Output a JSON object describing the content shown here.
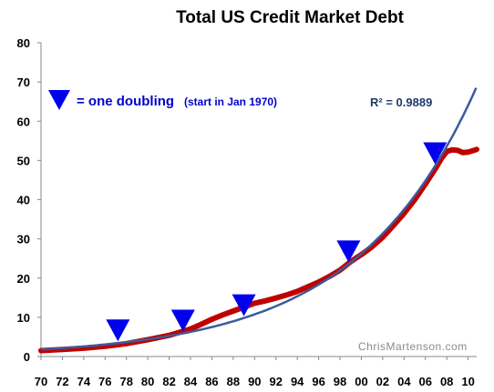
{
  "chart_data": {
    "type": "line",
    "title": "Total US Credit Market Debt",
    "xlabel": "",
    "ylabel": "",
    "xlim": [
      1970,
      2010.8
    ],
    "ylim": [
      0,
      80
    ],
    "x_ticks": [
      "70",
      "72",
      "74",
      "76",
      "78",
      "80",
      "82",
      "84",
      "86",
      "88",
      "90",
      "92",
      "94",
      "96",
      "98",
      "00",
      "02",
      "04",
      "06",
      "08",
      "10"
    ],
    "y_ticks": [
      0,
      10,
      20,
      30,
      40,
      50,
      60,
      70,
      80
    ],
    "grid": false,
    "annotation_r2": "R² = 0.9889",
    "legend_label": "= one doubling",
    "legend_note": "(start in Jan 1970)",
    "credit": "ChrisMartenson.com",
    "series": [
      {
        "color": "#c00000",
        "x": [
          1970,
          1972,
          1974,
          1976,
          1978,
          1980,
          1982,
          1984,
          1985,
          1986,
          1987,
          1988,
          1989,
          1990,
          1991,
          1992,
          1993,
          1994,
          1995,
          1996,
          1997,
          1998,
          1999,
          2000,
          2001,
          2002,
          2003,
          2004,
          2005,
          2006,
          2007,
          2007.5,
          2008,
          2008.5,
          2009,
          2009.5,
          2010,
          2010.8
        ],
        "values": [
          1.5,
          1.8,
          2.1,
          2.6,
          3.3,
          4.3,
          5.4,
          7.0,
          8.2,
          9.5,
          10.6,
          11.6,
          12.6,
          13.6,
          14.2,
          14.9,
          15.7,
          16.6,
          17.8,
          19.0,
          20.4,
          22.0,
          24.2,
          26.0,
          28.0,
          30.4,
          33.4,
          36.5,
          40.0,
          44.0,
          48.2,
          50.5,
          52.3,
          52.7,
          52.6,
          52.0,
          52.1,
          52.8
        ]
      },
      {
        "color": "#3b5b9c",
        "trend": {
          "type": "exponential",
          "a": 1.8,
          "b": 0.0893,
          "x0": 1970
        }
      }
    ],
    "doubling_markers_x": [
      1977.2,
      1983.3,
      1989.0,
      1998.8,
      2006.9
    ],
    "marker_color": "#0000ee"
  }
}
